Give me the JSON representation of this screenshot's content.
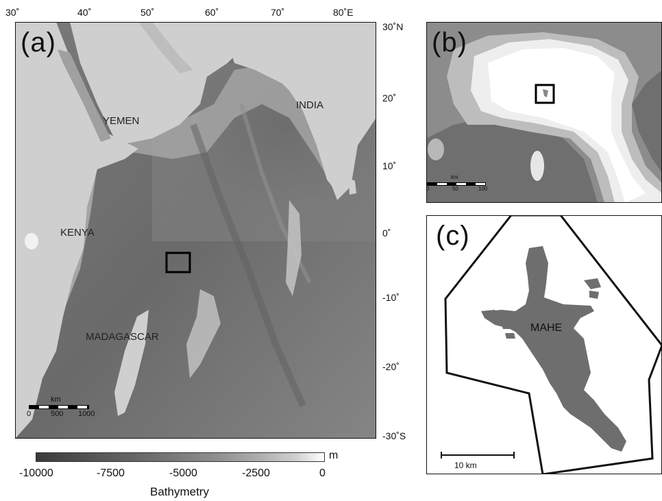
{
  "panels": {
    "a": {
      "label": "(a)",
      "lon_ticks": [
        "30˚",
        "40˚",
        "50˚",
        "60˚",
        "70˚",
        "80˚E"
      ],
      "lat_ticks": [
        "30˚N",
        "20˚",
        "10˚",
        "0˚",
        "-10˚",
        "-20˚",
        "-30˚S"
      ],
      "places": {
        "yemen": "YEMEN",
        "india": "INDIA",
        "kenya": "KENYA",
        "madagascar": "MADAGASCAR"
      },
      "scale": {
        "unit": "km",
        "labels": [
          "0",
          "500",
          "1000"
        ]
      }
    },
    "b": {
      "label": "(b)",
      "scale": {
        "unit": "km",
        "labels": [
          "0",
          "50",
          "100"
        ]
      }
    },
    "c": {
      "label": "(c)",
      "island": "MAHE",
      "scale": {
        "label": "10 km"
      }
    }
  },
  "colorbar": {
    "unit": "m",
    "tick_labels": [
      "-10000",
      "-7500",
      "-5000",
      "-2500",
      "0"
    ],
    "title": "Bathymetry",
    "colors": {
      "deep": "#3a3a3a",
      "shallow": "#ffffff"
    }
  }
}
